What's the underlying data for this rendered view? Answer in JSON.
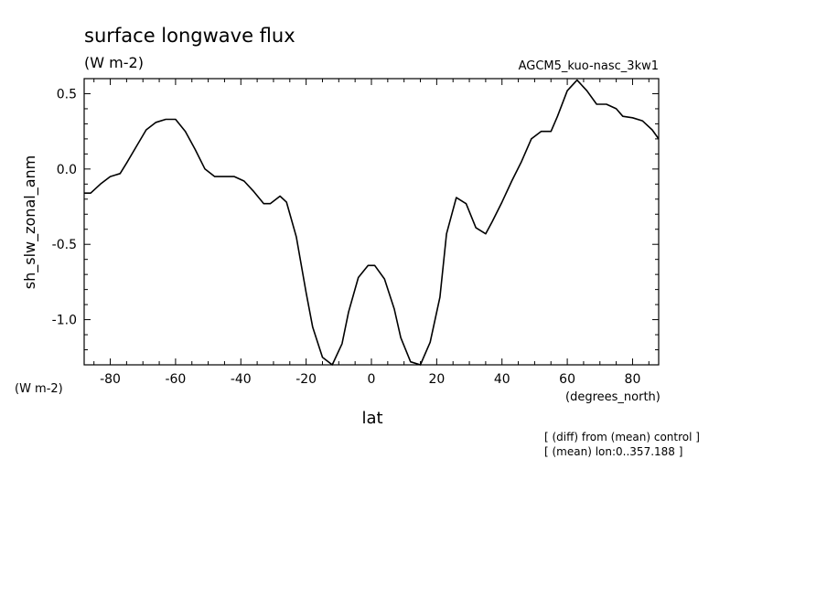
{
  "chart_data": {
    "type": "line",
    "title": "surface longwave flux",
    "subtitle": "(W m-2)",
    "run_label": "AGCM5_kuo-nasc_3kw1",
    "ylabel": "sh_slw_zonal_anm",
    "ylabel_units": "(W m-2)",
    "xlabel": "lat",
    "xlabel_units": "(degrees_north)",
    "notes": [
      "[ (diff) from (mean) control ]",
      "[ (mean) lon:0..357.188 ]"
    ],
    "xlim": [
      -88,
      88
    ],
    "ylim": [
      -1.3,
      0.6
    ],
    "x_ticks": [
      -80,
      -60,
      -40,
      -20,
      0,
      20,
      40,
      60,
      80
    ],
    "x_tick_labels": [
      "-80",
      "-60",
      "-40",
      "-20",
      "0",
      "20",
      "40",
      "60",
      "80"
    ],
    "y_ticks": [
      0.5,
      0.0,
      -0.5,
      -1.0
    ],
    "y_tick_labels": [
      "0.5",
      "0.0",
      "-0.5",
      "-1.0"
    ],
    "grid": false,
    "series": [
      {
        "color": "#000000",
        "x": [
          -88,
          -86,
          -83,
          -80,
          -77,
          -75,
          -72,
          -69,
          -66,
          -63,
          -60,
          -57,
          -54,
          -51,
          -48,
          -45,
          -42,
          -39,
          -36,
          -33,
          -31,
          -28,
          -26,
          -23,
          -20,
          -18,
          -15,
          -12,
          -9,
          -7,
          -4,
          -1,
          1,
          4,
          7,
          9,
          12,
          15,
          18,
          21,
          23,
          26,
          29,
          32,
          35,
          37,
          40,
          43,
          46,
          49,
          52,
          55,
          57,
          60,
          63,
          66,
          69,
          72,
          75,
          77,
          80,
          83,
          86,
          88
        ],
        "y": [
          -0.16,
          -0.16,
          -0.1,
          -0.05,
          -0.03,
          0.04,
          0.15,
          0.26,
          0.31,
          0.33,
          0.33,
          0.25,
          0.13,
          0.0,
          -0.05,
          -0.05,
          -0.05,
          -0.08,
          -0.15,
          -0.23,
          -0.23,
          -0.18,
          -0.22,
          -0.45,
          -0.82,
          -1.05,
          -1.25,
          -1.3,
          -1.16,
          -0.95,
          -0.72,
          -0.64,
          -0.64,
          -0.73,
          -0.93,
          -1.12,
          -1.28,
          -1.3,
          -1.15,
          -0.85,
          -0.43,
          -0.19,
          -0.23,
          -0.39,
          -0.43,
          -0.35,
          -0.22,
          -0.08,
          0.05,
          0.2,
          0.25,
          0.25,
          0.35,
          0.52,
          0.59,
          0.52,
          0.43,
          0.43,
          0.4,
          0.35,
          0.34,
          0.32,
          0.26,
          0.2
        ]
      }
    ]
  }
}
